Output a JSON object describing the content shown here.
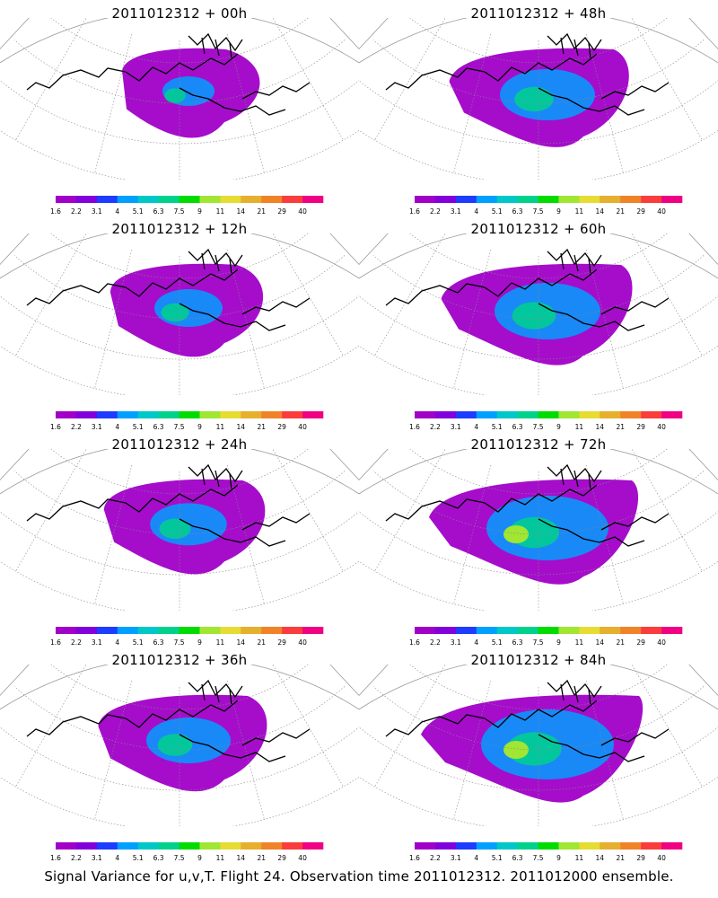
{
  "panels": [
    {
      "id": "p00",
      "title": "2011012312 + 00h",
      "intensity": 0.15
    },
    {
      "id": "p48",
      "title": "2011012312 + 48h",
      "intensity": 0.55
    },
    {
      "id": "p12",
      "title": "2011012312 + 12h",
      "intensity": 0.3
    },
    {
      "id": "p60",
      "title": "2011012312 + 60h",
      "intensity": 0.65
    },
    {
      "id": "p24",
      "title": "2011012312 + 24h",
      "intensity": 0.38
    },
    {
      "id": "p72",
      "title": "2011012312 + 72h",
      "intensity": 0.8
    },
    {
      "id": "p36",
      "title": "2011012312 + 36h",
      "intensity": 0.45
    },
    {
      "id": "p84",
      "title": "2011012312 + 84h",
      "intensity": 0.9
    }
  ],
  "colorbar": {
    "labels": [
      "1.6",
      "2.2",
      "3.1",
      "4",
      "5.1",
      "6.3",
      "7.5",
      "9",
      "11",
      "14",
      "21",
      "29",
      "40"
    ],
    "colors": [
      "#a000c8",
      "#8200dc",
      "#1e3cff",
      "#00a0ff",
      "#00c8c8",
      "#00d28c",
      "#00dc00",
      "#a0e632",
      "#e6dc32",
      "#e6af2d",
      "#f08228",
      "#fa3c3c",
      "#f00082"
    ]
  },
  "footer": "Signal Variance for u,v,T. Flight 24. Observation time 2011012312. 2011012000 ensemble."
}
